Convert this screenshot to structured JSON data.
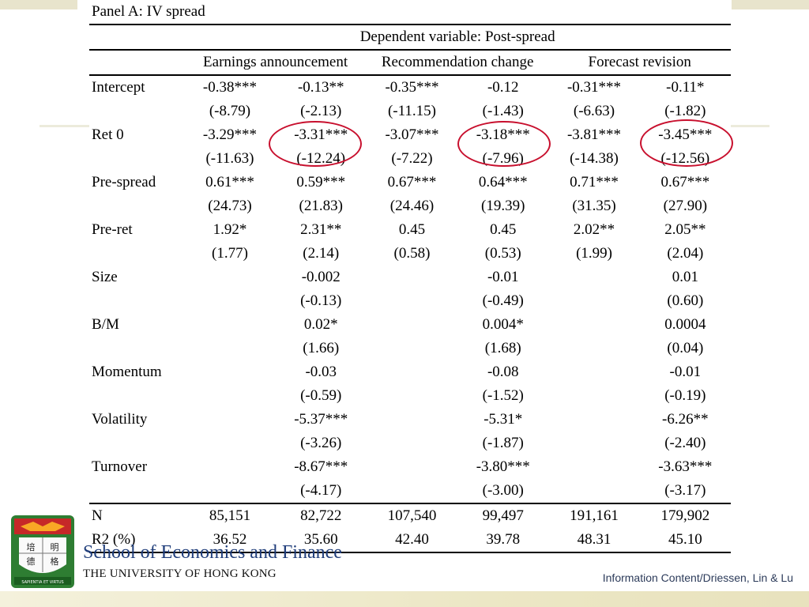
{
  "panel_title": "Panel A: IV spread",
  "dependent_header": "Dependent variable: Post-spread",
  "groups": [
    "Earnings announcement",
    "Recommendation change",
    "Forecast revision"
  ],
  "rows": [
    {
      "label": "Intercept",
      "cells": [
        "-0.38***",
        "-0.13**",
        "-0.35***",
        "-0.12",
        "-0.31***",
        "-0.11*"
      ]
    },
    {
      "label": "",
      "cells": [
        "(-8.79)",
        "(-2.13)",
        "(-11.15)",
        "(-1.43)",
        "(-6.63)",
        "(-1.82)"
      ]
    },
    {
      "label": "Ret 0",
      "cells": [
        "-3.29***",
        "-3.31***",
        "-3.07***",
        "-3.18***",
        "-3.81***",
        "-3.45***"
      ]
    },
    {
      "label": "",
      "cells": [
        "(-11.63)",
        "(-12.24)",
        "(-7.22)",
        "(-7.96)",
        "(-14.38)",
        "(-12.56)"
      ]
    },
    {
      "label": "Pre-spread",
      "cells": [
        "0.61***",
        "0.59***",
        "0.67***",
        "0.64***",
        "0.71***",
        "0.67***"
      ]
    },
    {
      "label": "",
      "cells": [
        "(24.73)",
        "(21.83)",
        "(24.46)",
        "(19.39)",
        "(31.35)",
        "(27.90)"
      ]
    },
    {
      "label": "Pre-ret",
      "cells": [
        "1.92*",
        "2.31**",
        "0.45",
        "0.45",
        "2.02**",
        "2.05**"
      ]
    },
    {
      "label": "",
      "cells": [
        "(1.77)",
        "(2.14)",
        "(0.58)",
        "(0.53)",
        "(1.99)",
        "(2.04)"
      ]
    },
    {
      "label": "Size",
      "cells": [
        "",
        "-0.002",
        "",
        "-0.01",
        "",
        "0.01"
      ]
    },
    {
      "label": "",
      "cells": [
        "",
        "(-0.13)",
        "",
        "(-0.49)",
        "",
        "(0.60)"
      ]
    },
    {
      "label": "B/M",
      "cells": [
        "",
        "0.02*",
        "",
        "0.004*",
        "",
        "0.0004"
      ]
    },
    {
      "label": "",
      "cells": [
        "",
        "(1.66)",
        "",
        "(1.68)",
        "",
        "(0.04)"
      ]
    },
    {
      "label": "Momentum",
      "cells": [
        "",
        "-0.03",
        "",
        "-0.08",
        "",
        "-0.01"
      ]
    },
    {
      "label": "",
      "cells": [
        "",
        "(-0.59)",
        "",
        "(-1.52)",
        "",
        "(-0.19)"
      ]
    },
    {
      "label": "Volatility",
      "cells": [
        "",
        "-5.37***",
        "",
        "-5.31*",
        "",
        "-6.26**"
      ]
    },
    {
      "label": "",
      "cells": [
        "",
        "(-3.26)",
        "",
        "(-1.87)",
        "",
        "(-2.40)"
      ]
    },
    {
      "label": "Turnover",
      "cells": [
        "",
        "-8.67***",
        "",
        "-3.80***",
        "",
        "-3.63***"
      ]
    },
    {
      "label": "",
      "cells": [
        "",
        "(-4.17)",
        "",
        "(-3.00)",
        "",
        "(-3.17)"
      ]
    }
  ],
  "summary_rows": [
    {
      "label": "N",
      "cells": [
        "85,151",
        "82,722",
        "107,540",
        "99,497",
        "191,161",
        "179,902"
      ]
    },
    {
      "label": "R2 (%)",
      "cells": [
        "36.52",
        "35.60",
        "42.40",
        "39.78",
        "48.31",
        "45.10"
      ]
    }
  ],
  "highlight_color": "#c8102e",
  "logo": {
    "school_name": "School of Economics and Finance",
    "university_name": "THE UNIVERSITY OF HONG KONG",
    "crest_chars": [
      "培",
      "明",
      "德",
      "格"
    ],
    "motto": "SAPIENTIA ET VIRTUS"
  },
  "footer_note": "Information Content/Driessen, Lin & Lu"
}
